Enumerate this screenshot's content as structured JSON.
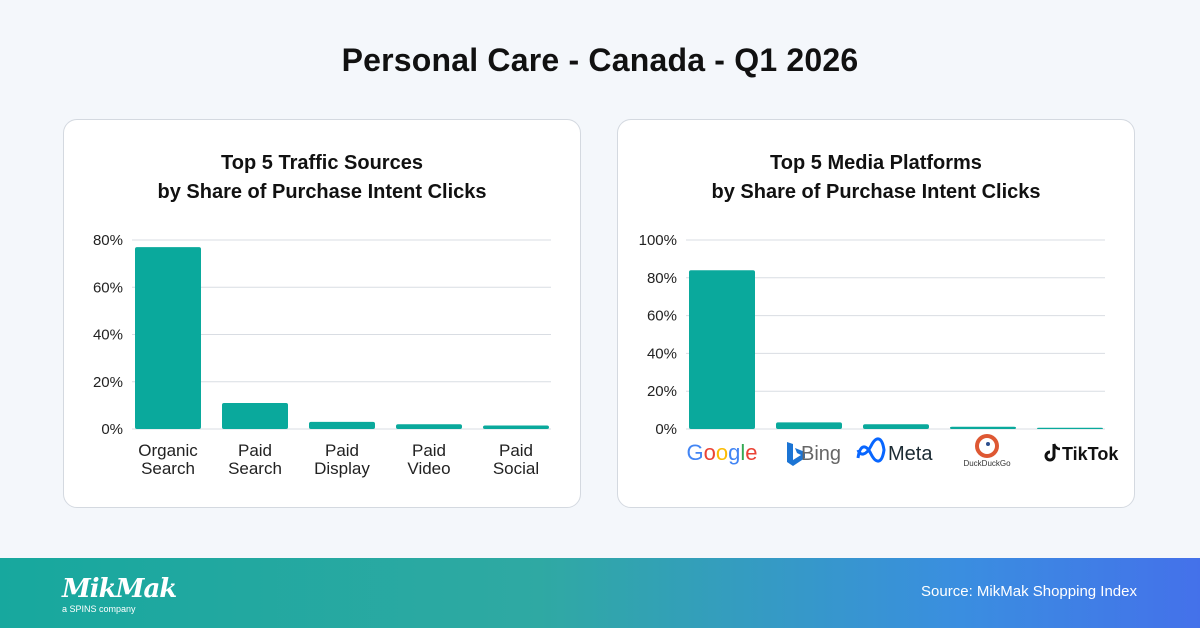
{
  "page_title": "Personal Care - Canada - Q1 2026",
  "footer": {
    "logo_text": "MikMak",
    "logo_subtext": "a SPINS company",
    "source": "Source: MikMak Shopping Index"
  },
  "colors": {
    "bar": "#0aa99c",
    "grid": "#d9dde3"
  },
  "chart_data": [
    {
      "type": "bar",
      "title": [
        "Top 5 Traffic Sources",
        "by Share of Purchase Intent Clicks"
      ],
      "categories": [
        [
          "Organic",
          "Search"
        ],
        [
          "Paid",
          "Search"
        ],
        [
          "Paid",
          "Display"
        ],
        [
          "Paid",
          "Video"
        ],
        [
          "Paid",
          "Social"
        ]
      ],
      "values": [
        77,
        11,
        3,
        2,
        1.5
      ],
      "ylim": [
        0,
        80
      ],
      "yticks": [
        0,
        20,
        40,
        60,
        80
      ],
      "ytick_labels": [
        "0%",
        "20%",
        "40%",
        "60%",
        "80%"
      ],
      "grid": true
    },
    {
      "type": "bar",
      "title": [
        "Top 5 Media Platforms",
        "by Share of Purchase Intent Clicks"
      ],
      "categories": [
        "Google",
        "Bing",
        "Meta",
        "DuckDuckGo",
        "TikTok"
      ],
      "category_icons": [
        "google-logo-icon",
        "bing-logo-icon",
        "meta-logo-icon",
        "duckduckgo-logo-icon",
        "tiktok-logo-icon"
      ],
      "values": [
        84,
        3.5,
        2.5,
        1.2,
        0.4
      ],
      "ylim": [
        0,
        100
      ],
      "yticks": [
        0,
        20,
        40,
        60,
        80,
        100
      ],
      "ytick_labels": [
        "0%",
        "20%",
        "40%",
        "60%",
        "80%",
        "100%"
      ],
      "grid": true
    }
  ]
}
